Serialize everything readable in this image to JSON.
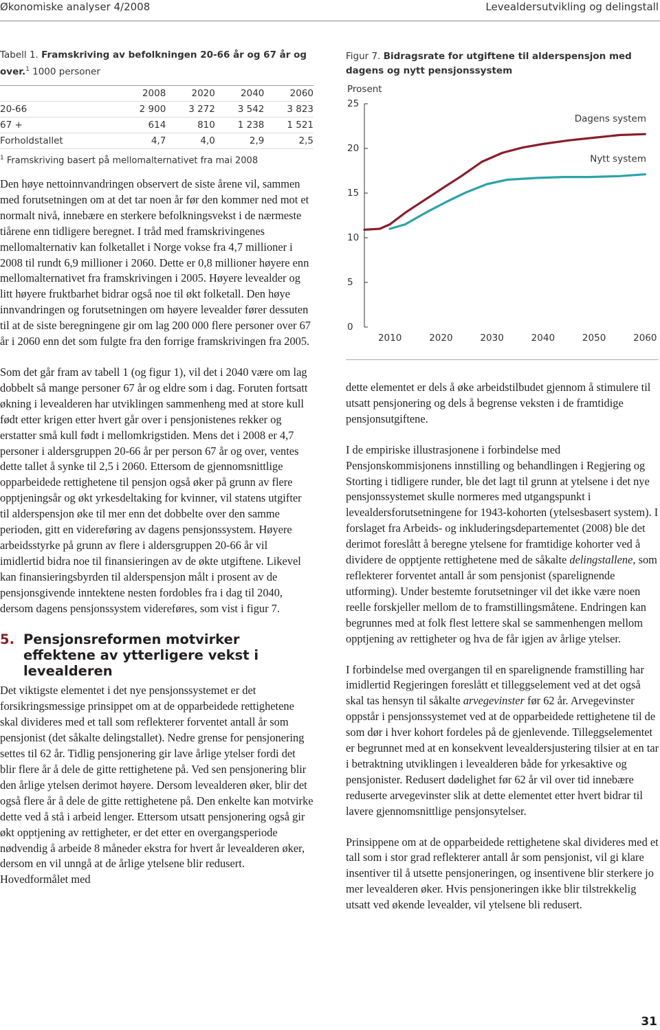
{
  "header": {
    "left": "Økonomiske analyser 4/2008",
    "right": "Levealdersutvikling og delingstall"
  },
  "table": {
    "label": "Tabell 1.",
    "title": "Framskriving av befolkningen 20-66 år og 67 år og over.",
    "note_mark": "1",
    "unit": "1000 personer",
    "columns": [
      "2008",
      "2020",
      "2040",
      "2060"
    ],
    "rows": [
      [
        "20-66",
        "2 900",
        "3 272",
        "3 542",
        "3 823"
      ],
      [
        "67 +",
        "614",
        "810",
        "1 238",
        "1 521"
      ],
      [
        "Forholdstallet",
        "4,7",
        "4,0",
        "2,9",
        "2,5"
      ]
    ],
    "footnote": {
      "mark": "1",
      "text": "Framskriving basert på mellomalternativet fra mai 2008"
    }
  },
  "chart_data": {
    "type": "line",
    "label": "Figur 7.",
    "title": "Bidragsrate for utgiftene til alderspensjon med dagens og nytt pensjonssystem",
    "y_label": "Prosent",
    "xlim": [
      2005,
      2061.3
    ],
    "xticks": [
      2010,
      2020,
      2030,
      2040,
      2050,
      2060
    ],
    "ylim": [
      0,
      25
    ],
    "yticks": [
      0,
      5,
      10,
      15,
      20,
      25
    ],
    "series": [
      {
        "name": "Dagens system",
        "color": "#8b1c2a",
        "x": [
          2005,
          2008,
          2010,
          2013,
          2017,
          2021,
          2024,
          2028,
          2032,
          2036,
          2040,
          2045,
          2050,
          2055,
          2060
        ],
        "values": [
          10.9,
          11.0,
          11.5,
          12.8,
          14.3,
          15.8,
          16.9,
          18.5,
          19.5,
          20.1,
          20.5,
          20.9,
          21.2,
          21.5,
          21.6
        ]
      },
      {
        "name": "Nytt system",
        "color": "#2aa3a8",
        "x": [
          2010,
          2013,
          2017,
          2021,
          2025,
          2029,
          2033,
          2039,
          2044,
          2049,
          2055,
          2060
        ],
        "values": [
          11.0,
          11.5,
          12.8,
          14.0,
          15.1,
          16.0,
          16.5,
          16.7,
          16.8,
          16.8,
          16.9,
          17.1
        ]
      }
    ]
  },
  "left_column": {
    "paragraphs": [
      [
        "Den høye nettoinnvandringen observert de siste årene vil, sammen med forutsetningen om at det tar noen år før den kommer ned mot et normalt nivå, innebære en sterkere befolkningsvekst i de nærmeste tiårene enn tidligere beregnet. I tråd med framskrivingenes mellomalternativ kan folketallet i Norge vokse fra 4,7 millioner i 2008 til rundt 6,9 millioner i 2060. Dette er 0,8 millioner høyere enn mellomalternativet fra framskrivingen i 2005. Høyere levealder og litt høyere fruktbarhet bidrar også noe til økt folketall. Den høye innvandringen og forutsetningen om høyere levealder fører dessuten til at de siste beregningene gir om lag 200 000 flere personer over 67 år i 2060 enn det som fulgte fra den forrige framskrivingen fra 2005."
      ],
      [
        "Som det går fram av tabell 1 (og figur 1), vil det i 2040 være om lag dobbelt så mange personer 67 år og eldre som i dag. Foruten fortsatt økning i levealderen har utviklingen sammenheng med at store kull født etter krigen etter hvert går over i pensjonistenes rekker og erstatter små kull født i mellomkrigstiden. Mens det i 2008 er 4,7 personer i aldersgruppen 20-66 år per person 67 år og over, ventes dette tallet å synke til 2,5 i 2060. Ettersom de gjennomsnittlige opparbeidede rettighetene til pensjon også øker på grunn av flere opptjeningsår og økt yrkesdeltaking for kvinner, vil statens utgifter til alderspensjon øke til mer enn det dobbelte over den samme perioden, gitt en videreføring av dagens pensjonssystem. Høyere arbeidsstyrke på grunn av flere i aldersgruppen 20-66 år vil imidlertid bidra noe til finansieringen av de økte utgiftene. Likevel kan finansieringsbyrden til alderspensjon målt i prosent av de pensjonsgivende inntektene nesten fordobles fra i dag til 2040, dersom dagens pensjonssystem videreføres, som vist i figur 7."
      ]
    ],
    "section": {
      "number": "5.",
      "title": "Pensjonsreformen motvirker effektene av ytterligere vekst i levealderen",
      "paragraphs": [
        [
          "Det viktigste elementet i det nye pensjonssystemet er det forsikringsmessige prinsippet om at de opparbeidede rettighetene skal divideres med et tall som reflekterer forventet antall år som pensjonist (det såkalte delingstallet). Nedre grense for pensjonering settes til 62 år. Tidlig pensjonering gir lave årlige ytelser fordi det blir flere år å dele de gitte rettighetene på. Ved sen pensjonering blir den årlige ytelsen derimot høyere. Dersom levealderen øker, blir det også flere år å dele de gitte rettighetene på. Den enkelte kan motvirke dette ved å stå i arbeid lenger. Ettersom utsatt pensjonering også gir økt opptjening av rettigheter, er det etter en overgangsperiode nødvendig å arbeide 8 måneder ekstra for hvert år levealderen øker, dersom en vil unngå at de årlige ytelsene blir redusert. Hovedformålet med"
        ]
      ]
    }
  },
  "right_column": {
    "paragraphs": [
      [
        "dette elementet er dels å øke arbeidstilbudet gjennom å stimulere til utsatt pensjonering og dels å begrense veksten i de framtidige pensjonsutgiftene."
      ],
      [
        "I de empiriske illustrasjonene i forbindelse med Pensjonskommisjonens innstilling og behandlingen i Regjering og Storting i tidligere runder, ble det lagt til grunn at ytelsene i det nye pensjonssystemet skulle normeres med utgangspunkt i levealdersforutsetningene for 1943-kohorten (ytelsesbasert system). I forslaget fra Arbeids- og inkluderingsdepartementet (2008) ble det derimot foreslått å beregne ytelsene for framtidige kohorter ved å dividere de opptjente rettighetene med de såkalte ",
        {
          "text": "delingstallene,",
          "italic": true
        },
        " som reflekterer forventet antall år som pensjonist (sparelignende utforming). Under bestemte forutsetninger vil det ikke være noen reelle forskjeller mellom de to framstillingsmåtene. Endringen kan begrunnes med at folk flest lettere skal se sammenhengen mellom opptjening av rettigheter og hva de får igjen av årlige ytelser."
      ],
      [
        "I forbindelse med overgangen til en sparelignende framstilling har imidlertid Regjeringen foreslått et tilleggselement ved at det også skal tas hensyn til såkalte ",
        {
          "text": "arvegevinster",
          "italic": true
        },
        " før 62 år. Arvegevinster oppstår i pensjonssystemet ved at de opparbeidede rettighetene til de som dør i hver kohort fordeles på de gjenlevende. Tilleggselementet er begrunnet med at en konsekvent levealdersjustering tilsier at en tar i betraktning utviklingen i levealderen både for yrkesaktive og pensjonister. Redusert dødelighet før 62 år vil over tid innebære reduserte arvegevinster slik at dette elementet etter hvert bidrar til lavere gjennomsnittlige pensjonsytelser."
      ],
      [
        "Prinsippene om at de opparbeidede rettighetene skal divideres med et tall som i stor grad reflekterer antall år som pensjonist, vil gi klare insentiver til å utsette pensjoneringen, og insentivene blir sterkere jo mer levealderen øker. Hvis pensjoneringen ikke blir tilstrekkelig utsatt ved økende levealder, vil ytelsene bli redusert."
      ]
    ]
  },
  "page_number": "31"
}
